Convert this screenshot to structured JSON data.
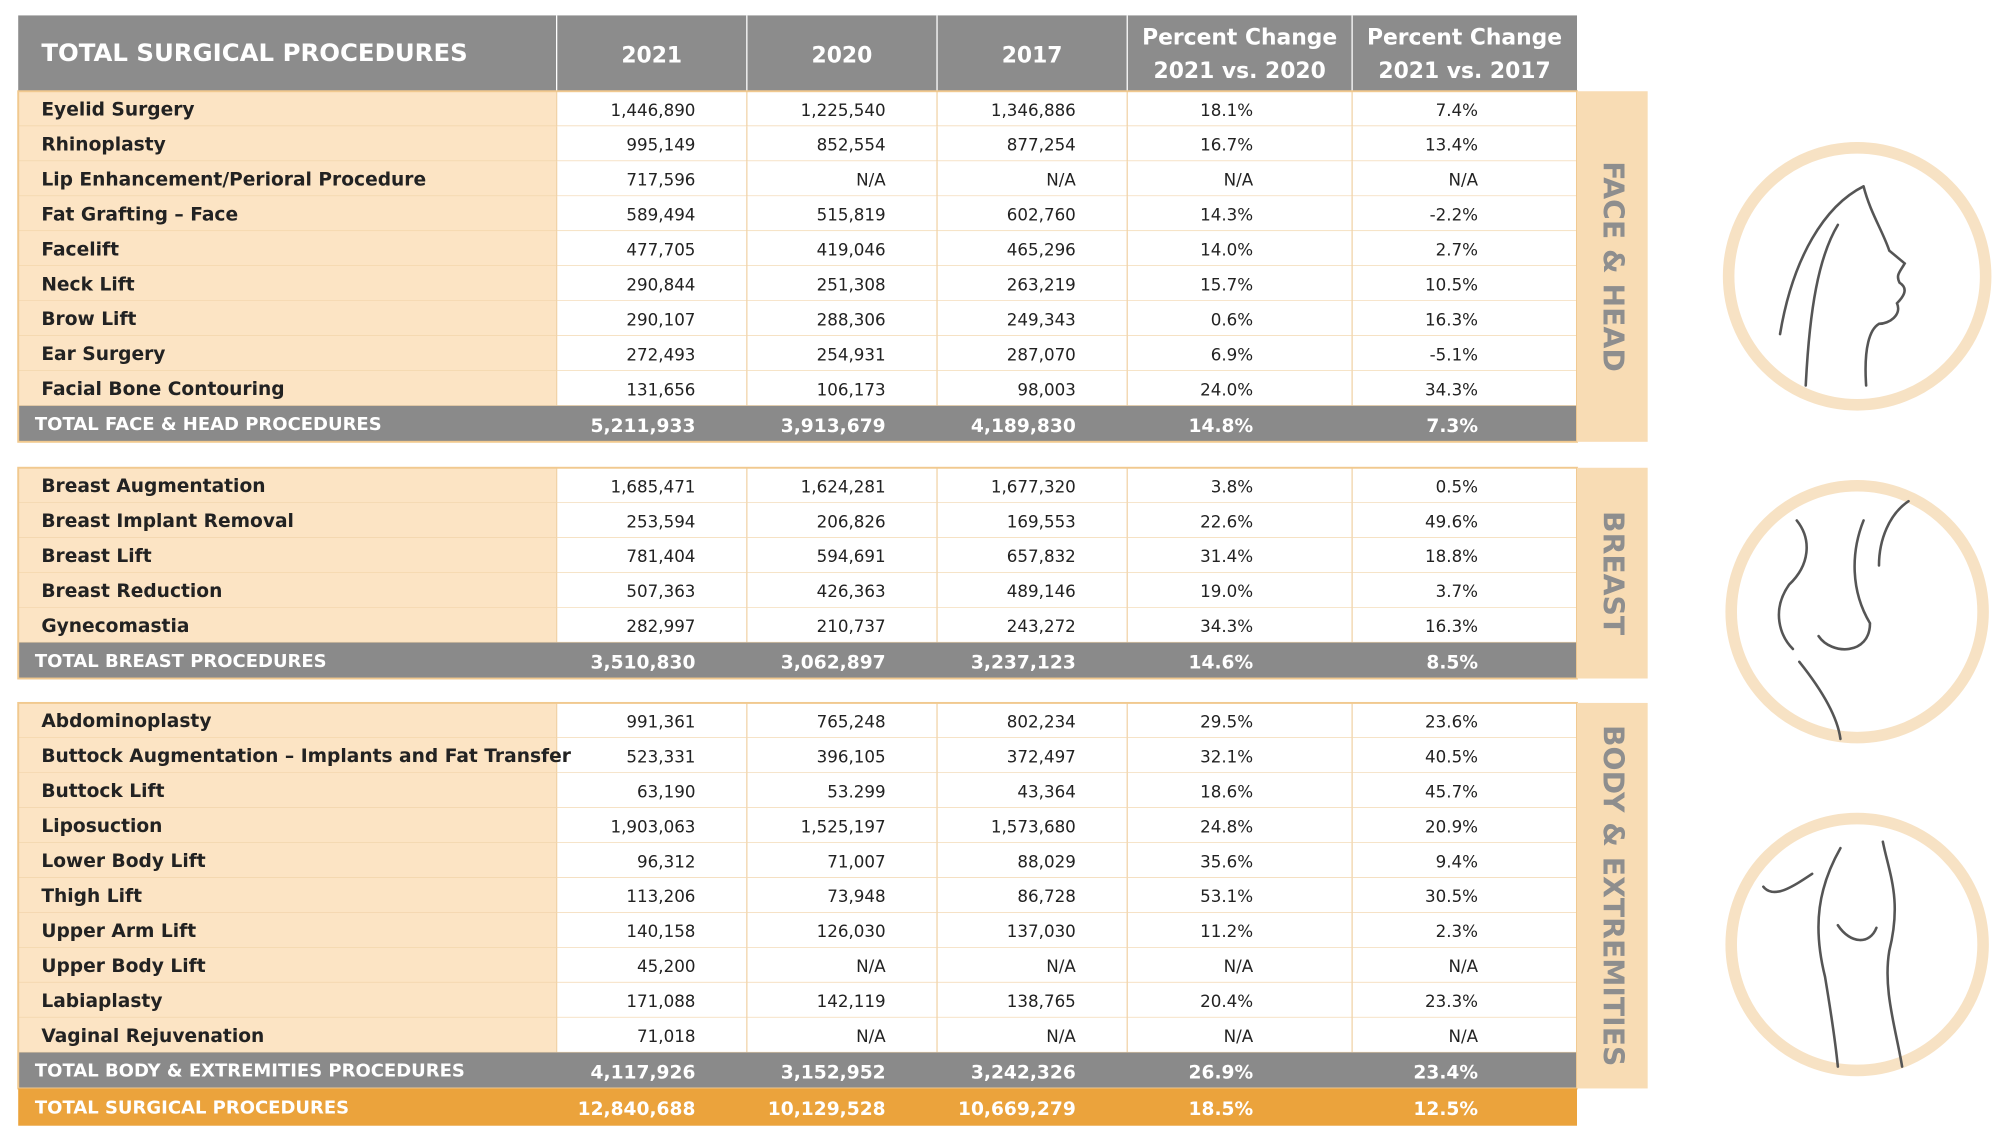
{
  "header": {
    "title": "TOTAL SURGICAL PROCEDURES",
    "columns": [
      [
        "2021"
      ],
      [
        "2020"
      ],
      [
        "2017"
      ],
      [
        "Percent Change",
        "2021 vs. 2020"
      ],
      [
        "Percent Change",
        "2021 vs. 2017"
      ]
    ]
  },
  "sections": [
    {
      "label": "FACE & HEAD",
      "rows": [
        [
          "Eyelid Surgery",
          "1,446,890",
          "1,225,540",
          "1,346,886",
          "18.1%",
          "7.4%"
        ],
        [
          "Rhinoplasty",
          "995,149",
          "852,554",
          "877,254",
          "16.7%",
          "13.4%"
        ],
        [
          "Lip Enhancement/Perioral Procedure",
          "717,596",
          "N/A",
          "N/A",
          "N/A",
          "N/A"
        ],
        [
          "Fat Grafting – Face",
          "589,494",
          "515,819",
          "602,760",
          "14.3%",
          "-2.2%"
        ],
        [
          "Facelift",
          "477,705",
          "419,046",
          "465,296",
          "14.0%",
          "2.7%"
        ],
        [
          "Neck Lift",
          "290,844",
          "251,308",
          "263,219",
          "15.7%",
          "10.5%"
        ],
        [
          "Brow Lift",
          "290,107",
          "288,306",
          "249,343",
          "0.6%",
          "16.3%"
        ],
        [
          "Ear Surgery",
          "272,493",
          "254,931",
          "287,070",
          "6.9%",
          "-5.1%"
        ],
        [
          "Facial Bone Contouring",
          "131,656",
          "106,173",
          "98,003",
          "24.0%",
          "34.3%"
        ]
      ],
      "total": [
        "TOTAL FACE & HEAD PROCEDURES",
        "5,211,933",
        "3,913,679",
        "4,189,830",
        "14.8%",
        "7.3%"
      ]
    },
    {
      "label": "BREAST",
      "rows": [
        [
          "Breast Augmentation",
          "1,685,471",
          "1,624,281",
          "1,677,320",
          "3.8%",
          "0.5%"
        ],
        [
          "Breast Implant Removal",
          "253,594",
          "206,826",
          "169,553",
          "22.6%",
          "49.6%"
        ],
        [
          "Breast Lift",
          "781,404",
          "594,691",
          "657,832",
          "31.4%",
          "18.8%"
        ],
        [
          "Breast Reduction",
          "507,363",
          "426,363",
          "489,146",
          "19.0%",
          "3.7%"
        ],
        [
          "Gynecomastia",
          "282,997",
          "210,737",
          "243,272",
          "34.3%",
          "16.3%"
        ]
      ],
      "total": [
        "TOTAL BREAST PROCEDURES",
        "3,510,830",
        "3,062,897",
        "3,237,123",
        "14.6%",
        "8.5%"
      ]
    },
    {
      "label": "BODY & EXTREMITIES",
      "rows": [
        [
          "Abdominoplasty",
          "991,361",
          "765,248",
          "802,234",
          "29.5%",
          "23.6%"
        ],
        [
          "Buttock Augmentation – Implants and Fat Transfer",
          "523,331",
          "396,105",
          "372,497",
          "32.1%",
          "40.5%"
        ],
        [
          "Buttock Lift",
          "63,190",
          "53.299",
          "43,364",
          "18.6%",
          "45.7%"
        ],
        [
          "Liposuction",
          "1,903,063",
          "1,525,197",
          "1,573,680",
          "24.8%",
          "20.9%"
        ],
        [
          "Lower Body Lift",
          "96,312",
          "71,007",
          "88,029",
          "35.6%",
          "9.4%"
        ],
        [
          "Thigh Lift",
          "113,206",
          "73,948",
          "86,728",
          "53.1%",
          "30.5%"
        ],
        [
          "Upper Arm Lift",
          "140,158",
          "126,030",
          "137,030",
          "11.2%",
          "2.3%"
        ],
        [
          "Upper Body Lift",
          "45,200",
          "N/A",
          "N/A",
          "N/A",
          "N/A"
        ],
        [
          "Labiaplasty",
          "171,088",
          "142,119",
          "138,765",
          "20.4%",
          "23.3%"
        ],
        [
          "Vaginal Rejuvenation",
          "71,018",
          "N/A",
          "N/A",
          "N/A",
          "N/A"
        ]
      ],
      "total": [
        "TOTAL BODY & EXTREMITIES PROCEDURES",
        "4,117,926",
        "3,152,952",
        "3,242,326",
        "26.9%",
        "23.4%"
      ]
    }
  ],
  "grand_total": [
    "TOTAL SURGICAL PROCEDURES",
    "12,840,688",
    "10,129,528",
    "10,669,279",
    "18.5%",
    "12.5%"
  ]
}
